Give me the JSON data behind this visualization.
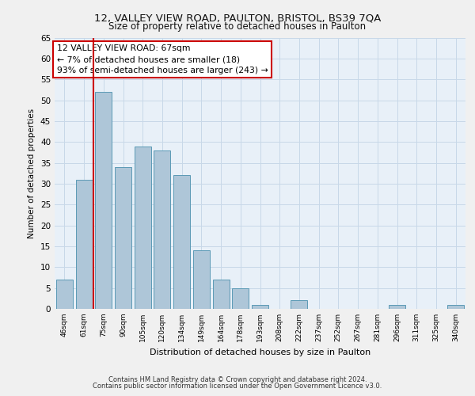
{
  "title1": "12, VALLEY VIEW ROAD, PAULTON, BRISTOL, BS39 7QA",
  "title2": "Size of property relative to detached houses in Paulton",
  "xlabel": "Distribution of detached houses by size in Paulton",
  "ylabel": "Number of detached properties",
  "categories": [
    "46sqm",
    "61sqm",
    "75sqm",
    "90sqm",
    "105sqm",
    "120sqm",
    "134sqm",
    "149sqm",
    "164sqm",
    "178sqm",
    "193sqm",
    "208sqm",
    "222sqm",
    "237sqm",
    "252sqm",
    "267sqm",
    "281sqm",
    "296sqm",
    "311sqm",
    "325sqm",
    "340sqm"
  ],
  "values": [
    7,
    31,
    52,
    34,
    39,
    38,
    32,
    14,
    7,
    5,
    1,
    0,
    2,
    0,
    0,
    0,
    0,
    1,
    0,
    0,
    1
  ],
  "bar_color": "#aec6d8",
  "bar_edge_color": "#5b9ab5",
  "grid_color": "#c8d8e8",
  "background_color": "#e8f0f8",
  "vline_x": 1.5,
  "vline_color": "#cc0000",
  "annotation_text": "12 VALLEY VIEW ROAD: 67sqm\n← 7% of detached houses are smaller (18)\n93% of semi-detached houses are larger (243) →",
  "annotation_box_color": "#ffffff",
  "annotation_box_edge": "#cc0000",
  "ylim": [
    0,
    65
  ],
  "yticks": [
    0,
    5,
    10,
    15,
    20,
    25,
    30,
    35,
    40,
    45,
    50,
    55,
    60,
    65
  ],
  "footer1": "Contains HM Land Registry data © Crown copyright and database right 2024.",
  "footer2": "Contains public sector information licensed under the Open Government Licence v3.0.",
  "fig_bg": "#f0f0f0"
}
